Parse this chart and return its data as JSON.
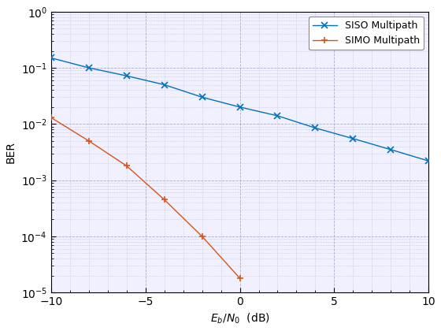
{
  "title": "",
  "xlabel": "$E_b/N_0$  (dB)",
  "ylabel": "BER",
  "xlim": [
    -10,
    10
  ],
  "ylim_log": [
    -5,
    0
  ],
  "siso_x": [
    -10,
    -8,
    -6,
    -4,
    -2,
    0,
    2,
    4,
    6,
    8,
    10
  ],
  "siso_y": [
    0.15,
    0.1,
    0.072,
    0.05,
    0.03,
    0.02,
    0.014,
    0.0085,
    0.0055,
    0.0035,
    0.0022
  ],
  "simo_x": [
    -10,
    -8,
    -6,
    -4,
    -2,
    0
  ],
  "simo_y": [
    0.013,
    0.005,
    0.0018,
    0.00045,
    0.0001,
    1.8e-05
  ],
  "siso_color": "#0072BD",
  "simo_color": "#D95319",
  "siso_label": "SISO Multipath",
  "simo_label": "SIMO Multipath",
  "siso_marker": "x",
  "simo_marker": "+",
  "marker_size": 6,
  "line_width": 1.0,
  "legend_loc": "upper right",
  "major_grid_color": "#aaaacc",
  "minor_grid_color": "#ccccdd",
  "bg_color": "#ffffff",
  "axes_bg_color": "#f0f0ff"
}
